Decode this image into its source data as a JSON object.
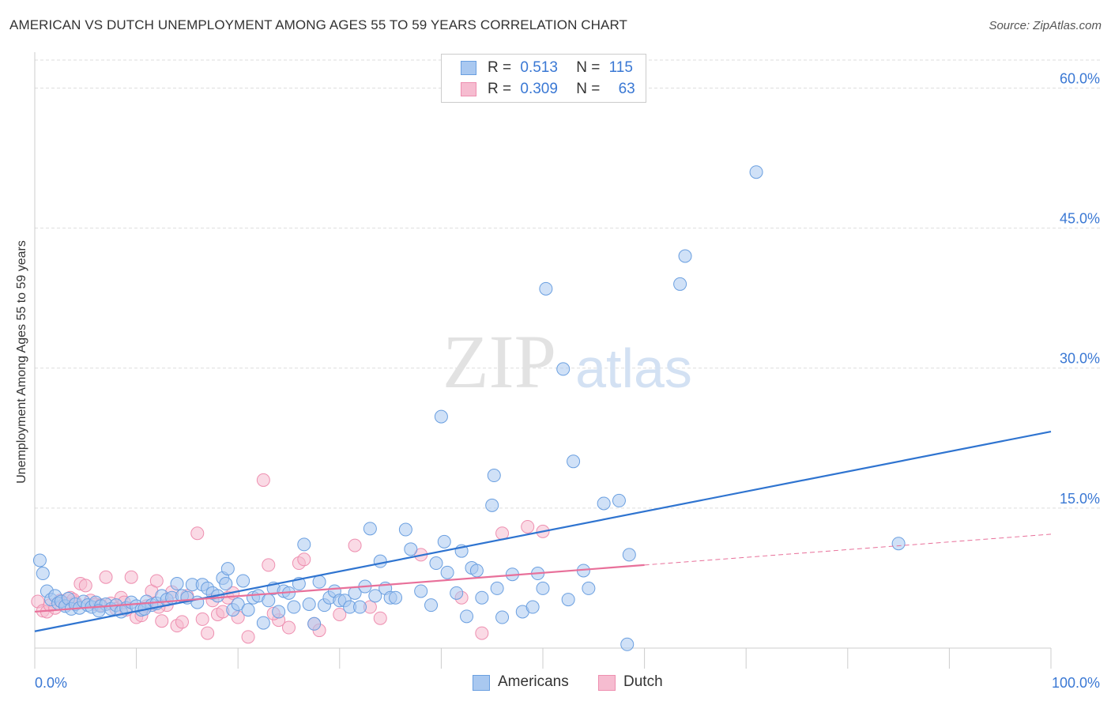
{
  "header": {
    "title": "AMERICAN VS DUTCH UNEMPLOYMENT AMONG AGES 55 TO 59 YEARS CORRELATION CHART",
    "source": "Source: ZipAtlas.com"
  },
  "legend": {
    "r_label": "R =",
    "n_label": "N =",
    "rows": [
      {
        "r": "0.513",
        "n": "115"
      },
      {
        "r": "0.309",
        "n": "63"
      }
    ]
  },
  "watermark": {
    "zip": "ZIP",
    "atlas": "atlas"
  },
  "colors": {
    "americans_fill": "#a9c8f0",
    "americans_stroke": "#6a9fe0",
    "americans_line": "#2f74d0",
    "dutch_fill": "#f6bcd0",
    "dutch_stroke": "#ee8fb0",
    "dutch_line": "#e8709a",
    "axis_label": "#3a78d4",
    "grid": "#dddddd"
  },
  "chart_data": {
    "type": "scatter",
    "title": "AMERICAN VS DUTCH UNEMPLOYMENT AMONG AGES 55 TO 59 YEARS CORRELATION CHART",
    "xlabel": "",
    "ylabel": "Unemployment Among Ages 55 to 59 years",
    "xlim": [
      0,
      100
    ],
    "ylim": [
      0,
      63
    ],
    "x_tick_labels": [
      "0.0%",
      "100.0%"
    ],
    "y_ticks": [
      15,
      30,
      45,
      60
    ],
    "y_tick_labels": [
      "15.0%",
      "30.0%",
      "45.0%",
      "60.0%"
    ],
    "grid": true,
    "legend_position": "top-center",
    "series": [
      {
        "name": "Americans",
        "R": 0.513,
        "N": 115,
        "trend": {
          "x": [
            0,
            100
          ],
          "y": [
            1.8,
            23.2
          ]
        },
        "points": [
          [
            0.5,
            9.4
          ],
          [
            0.8,
            8.0
          ],
          [
            1.2,
            6.1
          ],
          [
            1.6,
            5.2
          ],
          [
            2.0,
            5.6
          ],
          [
            2.3,
            4.8
          ],
          [
            2.6,
            5.0
          ],
          [
            3.0,
            4.5
          ],
          [
            3.3,
            5.3
          ],
          [
            3.6,
            4.2
          ],
          [
            4.0,
            4.7
          ],
          [
            4.4,
            4.3
          ],
          [
            4.8,
            5.0
          ],
          [
            5.2,
            4.6
          ],
          [
            5.6,
            4.4
          ],
          [
            6.0,
            4.9
          ],
          [
            6.5,
            4.5
          ],
          [
            7.0,
            4.7
          ],
          [
            7.5,
            4.2
          ],
          [
            8.0,
            4.6
          ],
          [
            8.5,
            3.9
          ],
          [
            9.0,
            4.3
          ],
          [
            9.5,
            4.9
          ],
          [
            10.0,
            4.5
          ],
          [
            10.5,
            4.1
          ],
          [
            11.0,
            5.0
          ],
          [
            11.5,
            4.6
          ],
          [
            12.0,
            4.8
          ],
          [
            12.5,
            5.6
          ],
          [
            13.0,
            5.2
          ],
          [
            13.5,
            5.4
          ],
          [
            14.0,
            6.9
          ],
          [
            14.5,
            5.6
          ],
          [
            15.0,
            5.4
          ],
          [
            15.5,
            6.8
          ],
          [
            16.0,
            4.9
          ],
          [
            16.5,
            6.8
          ],
          [
            17.0,
            6.4
          ],
          [
            17.5,
            5.9
          ],
          [
            18.0,
            5.6
          ],
          [
            18.5,
            7.5
          ],
          [
            19.0,
            8.5
          ],
          [
            19.5,
            4.1
          ],
          [
            20.0,
            4.7
          ],
          [
            20.5,
            7.2
          ],
          [
            21.0,
            4.1
          ],
          [
            21.5,
            5.4
          ],
          [
            22.0,
            5.6
          ],
          [
            22.5,
            2.7
          ],
          [
            23.0,
            5.1
          ],
          [
            23.5,
            6.4
          ],
          [
            24.0,
            3.9
          ],
          [
            24.5,
            6.1
          ],
          [
            25.0,
            5.9
          ],
          [
            25.5,
            4.4
          ],
          [
            26.0,
            6.9
          ],
          [
            26.5,
            11.1
          ],
          [
            27.0,
            4.7
          ],
          [
            27.5,
            2.6
          ],
          [
            28.0,
            7.1
          ],
          [
            28.5,
            4.6
          ],
          [
            29.0,
            5.4
          ],
          [
            29.5,
            6.1
          ],
          [
            30.0,
            5.1
          ],
          [
            30.5,
            5.1
          ],
          [
            31.0,
            4.4
          ],
          [
            31.5,
            5.9
          ],
          [
            32.0,
            4.4
          ],
          [
            32.5,
            6.6
          ],
          [
            33.0,
            12.8
          ],
          [
            33.5,
            5.6
          ],
          [
            34.0,
            9.3
          ],
          [
            34.5,
            6.4
          ],
          [
            35.0,
            5.4
          ],
          [
            35.5,
            5.4
          ],
          [
            36.5,
            12.7
          ],
          [
            37.0,
            10.6
          ],
          [
            38.0,
            6.1
          ],
          [
            39.0,
            4.6
          ],
          [
            39.5,
            9.1
          ],
          [
            40.0,
            24.8
          ],
          [
            40.3,
            11.4
          ],
          [
            40.6,
            8.1
          ],
          [
            41.5,
            5.9
          ],
          [
            42.0,
            10.4
          ],
          [
            42.5,
            3.4
          ],
          [
            43.0,
            8.6
          ],
          [
            43.5,
            8.3
          ],
          [
            44.0,
            5.4
          ],
          [
            45.0,
            15.3
          ],
          [
            45.2,
            18.5
          ],
          [
            45.5,
            6.4
          ],
          [
            46.0,
            3.3
          ],
          [
            47.0,
            7.9
          ],
          [
            48.0,
            3.9
          ],
          [
            49.0,
            4.4
          ],
          [
            49.5,
            8.0
          ],
          [
            50.0,
            6.4
          ],
          [
            50.3,
            38.5
          ],
          [
            52.0,
            29.9
          ],
          [
            52.5,
            5.2
          ],
          [
            53.0,
            20.0
          ],
          [
            54.0,
            8.3
          ],
          [
            54.5,
            6.4
          ],
          [
            56.0,
            15.5
          ],
          [
            57.5,
            15.8
          ],
          [
            58.3,
            0.4
          ],
          [
            58.5,
            10.0
          ],
          [
            63.5,
            39.0
          ],
          [
            64.0,
            42.0
          ],
          [
            71.0,
            51.0
          ],
          [
            85.0,
            11.2
          ],
          [
            6.3,
            4.0
          ],
          [
            10.8,
            4.2
          ],
          [
            18.8,
            6.9
          ]
        ]
      },
      {
        "name": "Dutch",
        "R": 0.309,
        "N": 63,
        "trend": {
          "x": [
            0,
            60
          ],
          "y": [
            3.9,
            8.9
          ]
        },
        "trend_extension": {
          "x": [
            60,
            100
          ],
          "y": [
            8.9,
            12.2
          ]
        },
        "points": [
          [
            0.3,
            5.0
          ],
          [
            0.8,
            4.0
          ],
          [
            1.2,
            3.9
          ],
          [
            1.5,
            4.6
          ],
          [
            2.0,
            4.3
          ],
          [
            2.5,
            5.1
          ],
          [
            3.0,
            4.8
          ],
          [
            3.5,
            5.4
          ],
          [
            4.0,
            4.9
          ],
          [
            4.5,
            6.9
          ],
          [
            5.0,
            6.7
          ],
          [
            5.5,
            5.1
          ],
          [
            6.0,
            4.7
          ],
          [
            6.5,
            4.6
          ],
          [
            7.0,
            7.6
          ],
          [
            7.5,
            4.8
          ],
          [
            8.0,
            4.2
          ],
          [
            8.5,
            5.4
          ],
          [
            9.0,
            4.1
          ],
          [
            9.5,
            7.6
          ],
          [
            10.0,
            3.3
          ],
          [
            10.5,
            3.5
          ],
          [
            11.0,
            4.5
          ],
          [
            11.5,
            6.1
          ],
          [
            12.0,
            7.2
          ],
          [
            12.5,
            2.9
          ],
          [
            13.0,
            4.6
          ],
          [
            13.5,
            6.0
          ],
          [
            14.0,
            2.4
          ],
          [
            14.5,
            2.8
          ],
          [
            15.0,
            5.6
          ],
          [
            16.0,
            12.3
          ],
          [
            16.5,
            3.1
          ],
          [
            17.0,
            1.6
          ],
          [
            17.5,
            5.1
          ],
          [
            18.0,
            3.6
          ],
          [
            18.5,
            3.9
          ],
          [
            19.0,
            5.4
          ],
          [
            19.5,
            5.9
          ],
          [
            20.0,
            3.3
          ],
          [
            21.0,
            1.2
          ],
          [
            22.5,
            18.0
          ],
          [
            23.0,
            8.9
          ],
          [
            24.0,
            3.0
          ],
          [
            25.0,
            2.2
          ],
          [
            26.0,
            9.1
          ],
          [
            26.5,
            9.5
          ],
          [
            27.5,
            2.6
          ],
          [
            28.0,
            1.9
          ],
          [
            30.0,
            3.6
          ],
          [
            31.5,
            11.0
          ],
          [
            34.0,
            3.2
          ],
          [
            38.0,
            10.0
          ],
          [
            42.0,
            5.4
          ],
          [
            44.0,
            1.6
          ],
          [
            46.0,
            12.3
          ],
          [
            48.5,
            13.0
          ],
          [
            50.0,
            12.5
          ],
          [
            3.8,
            5.2
          ],
          [
            12.2,
            4.4
          ],
          [
            8.8,
            4.9
          ],
          [
            23.5,
            3.7
          ],
          [
            33.0,
            4.4
          ]
        ]
      }
    ]
  },
  "bottom_legend": [
    {
      "label": "Americans"
    },
    {
      "label": "Dutch"
    }
  ]
}
